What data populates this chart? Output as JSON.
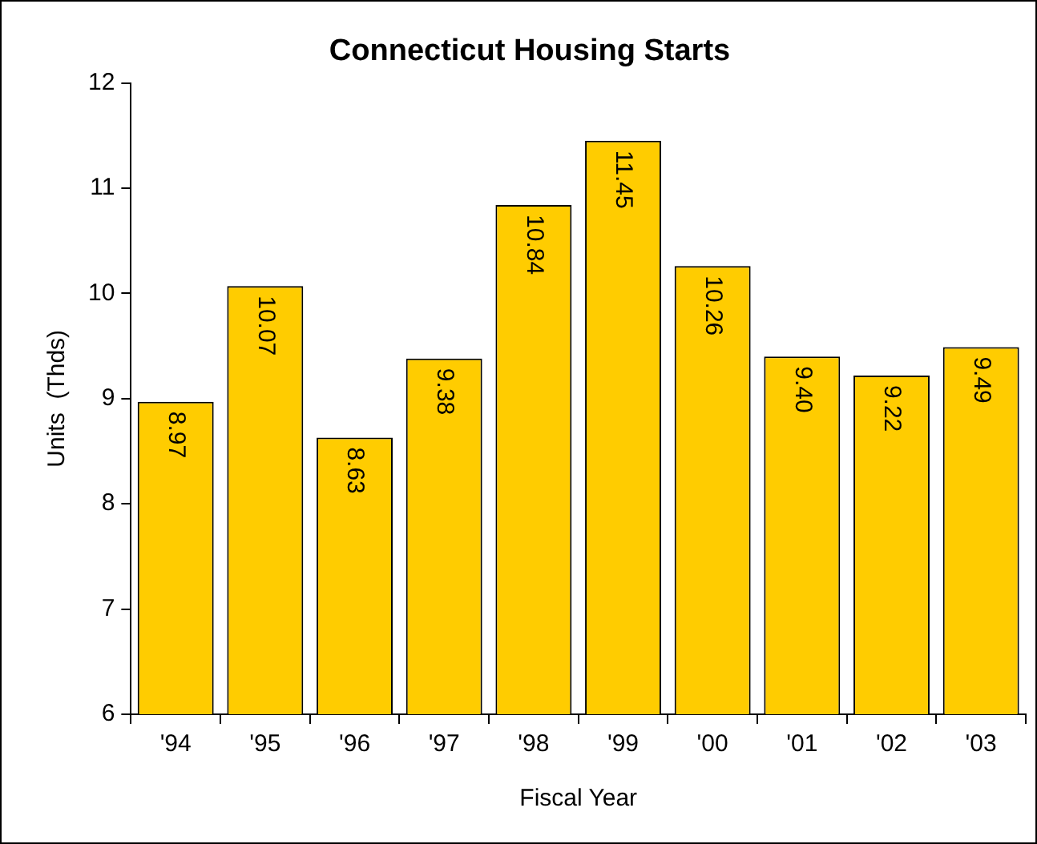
{
  "chart_data": {
    "type": "bar",
    "title": "Connecticut Housing Starts",
    "xlabel": "Fiscal Year",
    "ylabel": "Units  (Thds)",
    "categories": [
      "'94",
      "'95",
      "'96",
      "'97",
      "'98",
      "'99",
      "'00",
      "'01",
      "'02",
      "'03"
    ],
    "values": [
      8.97,
      10.07,
      8.63,
      9.38,
      10.84,
      11.45,
      10.26,
      9.4,
      9.22,
      9.49
    ],
    "value_labels": [
      "8.97",
      "10.07",
      "8.63",
      "9.38",
      "10.84",
      "11.45",
      "10.26",
      "9.40",
      "9.22",
      "9.49"
    ],
    "color": "#ffcc00",
    "ylim": [
      6,
      12
    ],
    "yticks": [
      6,
      7,
      8,
      9,
      10,
      11,
      12
    ],
    "grid": false,
    "legend": false
  }
}
